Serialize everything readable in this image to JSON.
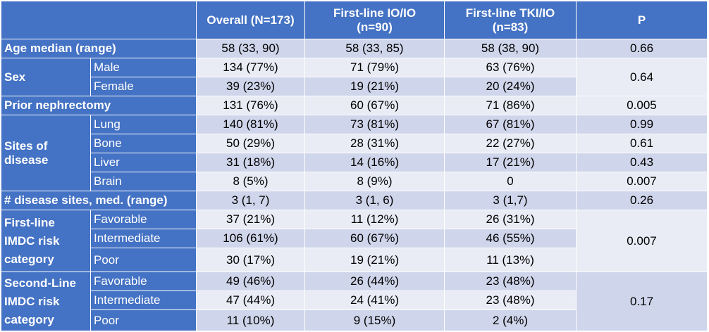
{
  "header": {
    "blank": "",
    "overall": "Overall (N=173)",
    "io_line1": "First-line IO/IO",
    "io_line2": "(n=90)",
    "tki_line1": "First-line TKI/IO",
    "tki_line2": "(n=83)",
    "p": "P"
  },
  "rows": {
    "age": {
      "label": "Age median (range)",
      "overall": "58 (33, 90)",
      "io": "58 (33, 85)",
      "tki": "58 (38, 90)",
      "p": "0.66"
    },
    "sex": {
      "label": "Sex",
      "p": "0.64",
      "male": {
        "label": "Male",
        "overall": "134 (77%)",
        "io": "71 (79%)",
        "tki": "63 (76%)"
      },
      "female": {
        "label": "Female",
        "overall": "39 (23%)",
        "io": "19 (21%)",
        "tki": "20 (24%)"
      }
    },
    "nephrectomy": {
      "label": "Prior nephrectomy",
      "overall": "131 (76%)",
      "io": "60 (67%)",
      "tki": "71 (86%)",
      "p": "0.005"
    },
    "sites": {
      "label_line1": "Sites of",
      "label_line2": "disease",
      "lung": {
        "label": "Lung",
        "overall": "140 (81%)",
        "io": "73 (81%)",
        "tki": "67 (81%)",
        "p": "0.99"
      },
      "bone": {
        "label": "Bone",
        "overall": "50 (29%)",
        "io": "28 (31%)",
        "tki": "22 (27%)",
        "p": "0.61"
      },
      "liver": {
        "label": "Liver",
        "overall": "31 (18%)",
        "io": "14 (16%)",
        "tki": "17 (21%)",
        "p": "0.43"
      },
      "brain": {
        "label": "Brain",
        "overall": "8 (5%)",
        "io": "8 (9%)",
        "tki": "0",
        "p": "0.007"
      }
    },
    "num_sites": {
      "label": "# disease sites, med. (range)",
      "overall": "3 (1, 7)",
      "io": "3 (1, 6)",
      "tki": "3 (1,7)",
      "p": "0.26"
    },
    "first_imdc": {
      "label_line1": "First-line",
      "label_line2": "IMDC risk",
      "label_line3": "category",
      "p": "0.007",
      "favorable": {
        "label": "Favorable",
        "overall": "37 (21%)",
        "io": "11 (12%)",
        "tki": "26 (31%)"
      },
      "intermediate": {
        "label": "Intermediate",
        "overall": "106 (61%)",
        "io": "60 (67%)",
        "tki": "46 (55%)"
      },
      "poor": {
        "label": "Poor",
        "overall": "30 (17%)",
        "io": "19 (21%)",
        "tki": "11 (13%)"
      }
    },
    "second_imdc": {
      "label_line1": "Second-Line",
      "label_line2": "IMDC risk",
      "label_line3": "category",
      "p": "0.17",
      "favorable": {
        "label": "Favorable",
        "overall": "49 (46%)",
        "io": "26 (44%)",
        "tki": "23 (48%)"
      },
      "intermediate": {
        "label": "Intermediate",
        "overall": "47 (44%)",
        "io": "24 (41%)",
        "tki": "23 (48%)"
      },
      "poor": {
        "label": "Poor",
        "overall": "11 (10%)",
        "io": "9 (15%)",
        "tki": "2 (4%)"
      }
    }
  },
  "colors": {
    "header_blue": "#4472c4",
    "band_light": "#cfd5ea",
    "band_pale": "#e9ebf5"
  }
}
